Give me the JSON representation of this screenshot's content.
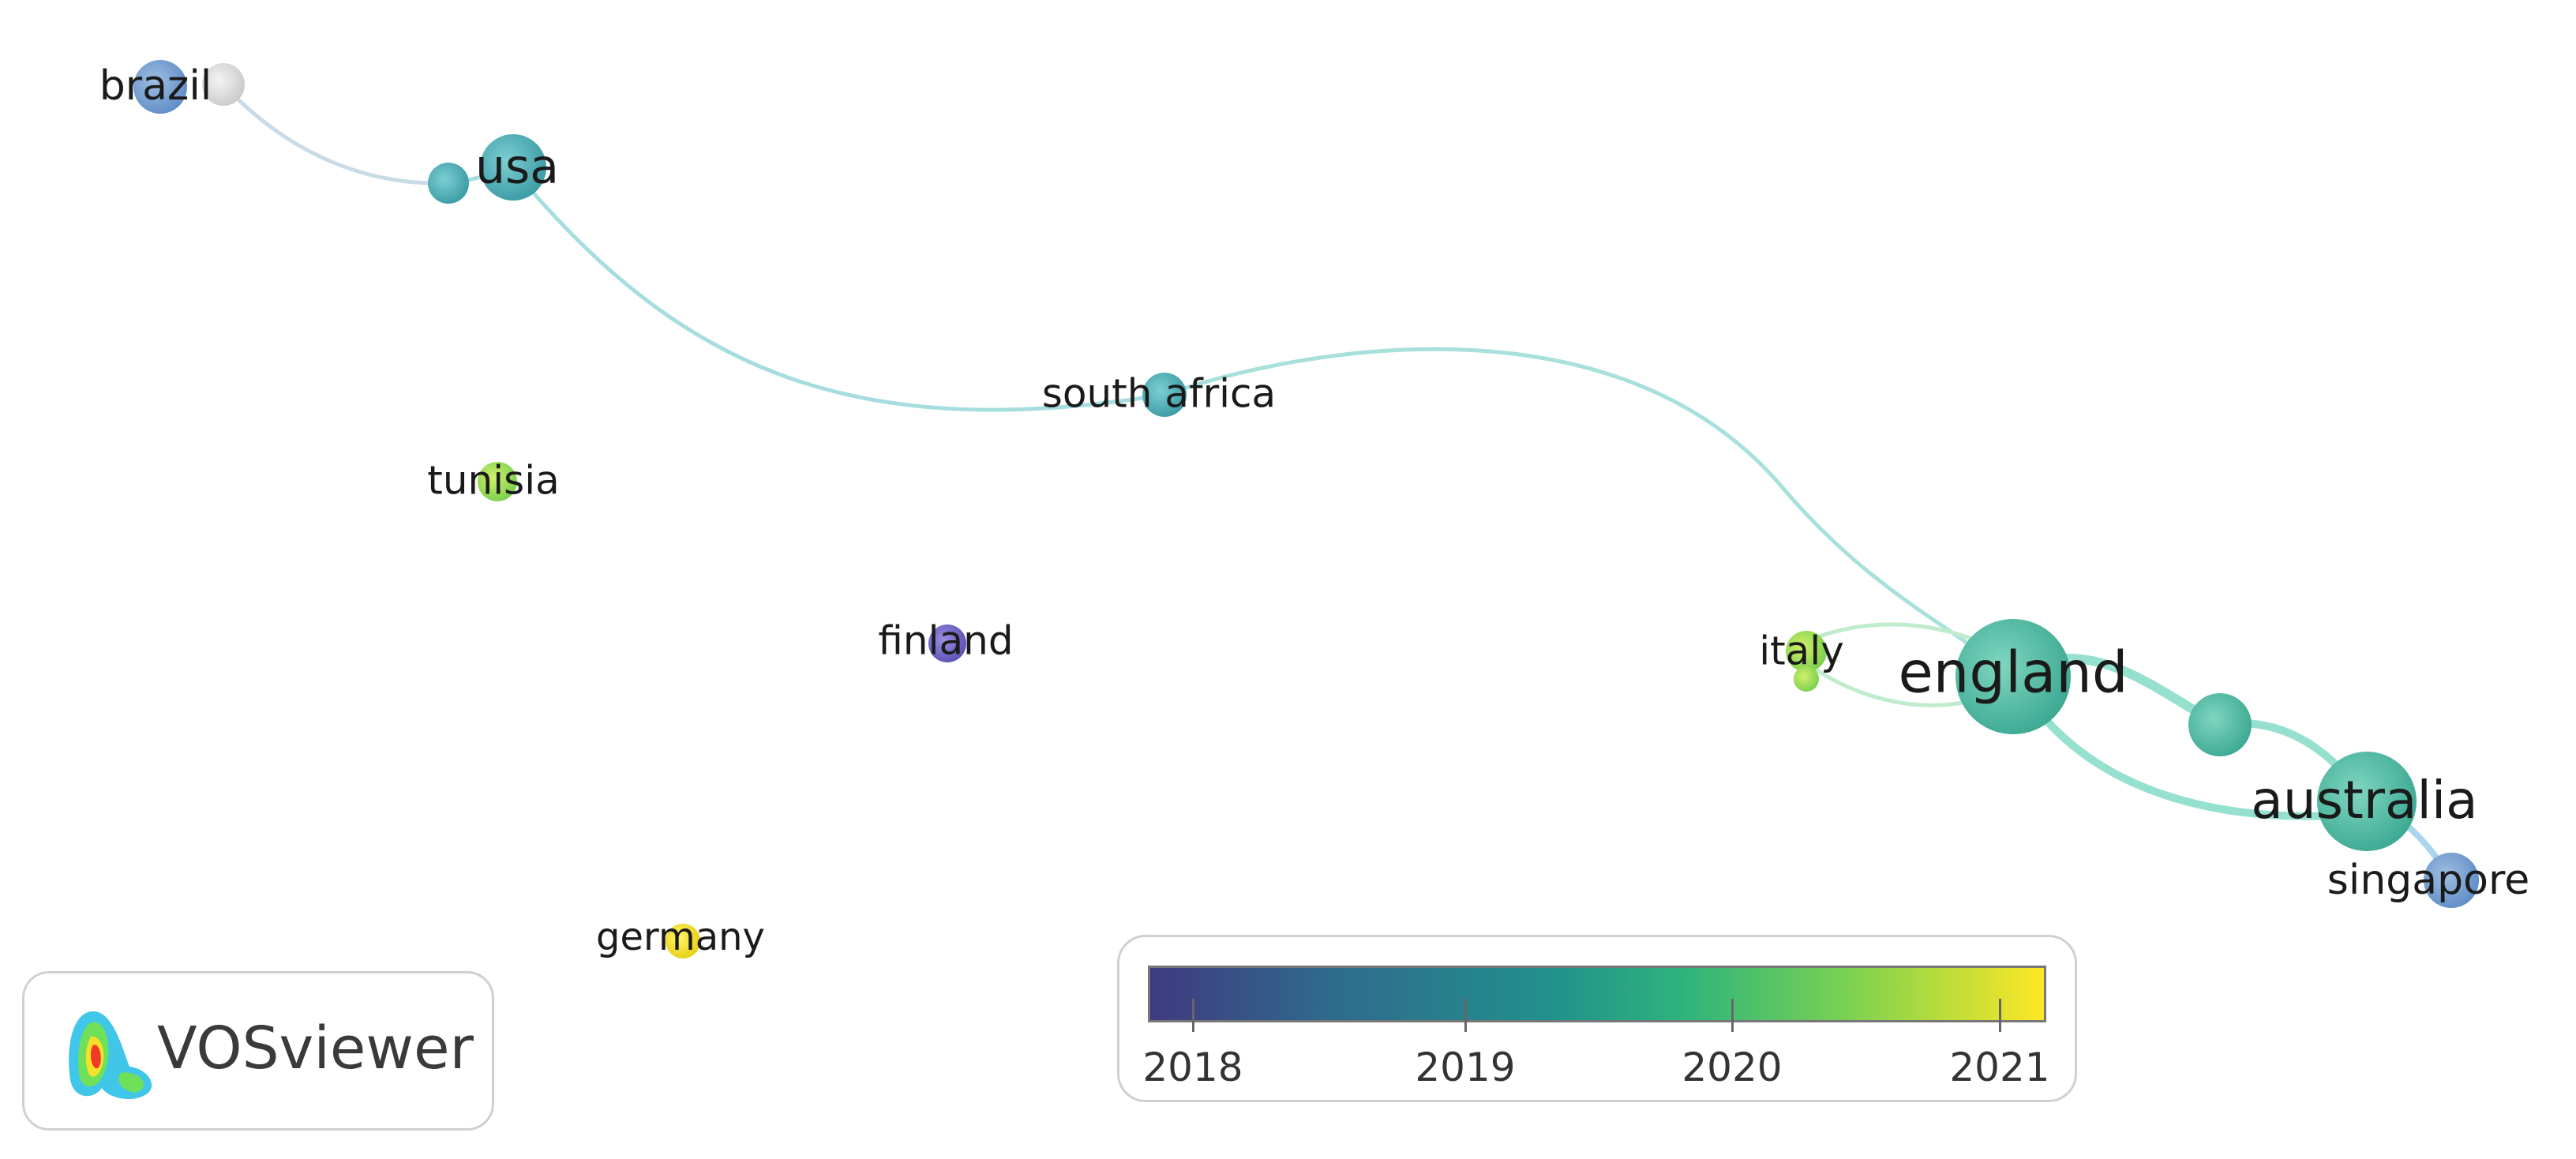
{
  "network": {
    "nodes": [
      {
        "id": "brazil",
        "label": "brazil",
        "year": 2018.6,
        "size": "small"
      },
      {
        "id": "unlabeled-grey",
        "label": "",
        "year": null,
        "size": "small"
      },
      {
        "id": "usa",
        "label": "usa",
        "year": 2019.0,
        "size": "medium"
      },
      {
        "id": "unlabeled-usa-2",
        "label": "",
        "year": 2019.0,
        "size": "small"
      },
      {
        "id": "south-africa",
        "label": "south africa",
        "year": 2019.0,
        "size": "small"
      },
      {
        "id": "tunisia",
        "label": "tunisia",
        "year": 2020.3,
        "size": "small"
      },
      {
        "id": "finland",
        "label": "finland",
        "year": 2018.1,
        "size": "small"
      },
      {
        "id": "italy",
        "label": "italy",
        "year": 2020.5,
        "size": "small"
      },
      {
        "id": "england",
        "label": "england",
        "year": 2019.3,
        "size": "large"
      },
      {
        "id": "unlabeled-mid",
        "label": "",
        "year": 2019.3,
        "size": "medium"
      },
      {
        "id": "australia",
        "label": "australia",
        "year": 2019.3,
        "size": "large"
      },
      {
        "id": "singapore",
        "label": "singapore",
        "year": 2018.6,
        "size": "small"
      },
      {
        "id": "germany",
        "label": "germany",
        "year": 2021.0,
        "size": "small"
      }
    ],
    "links": [
      [
        "unlabeled-grey",
        "unlabeled-usa-2"
      ],
      [
        "unlabeled-usa-2",
        "usa"
      ],
      [
        "usa",
        "south-africa"
      ],
      [
        "south-africa",
        "england"
      ],
      [
        "italy",
        "england"
      ],
      [
        "england",
        "unlabeled-mid"
      ],
      [
        "unlabeled-mid",
        "australia"
      ],
      [
        "england",
        "australia"
      ],
      [
        "australia",
        "singapore"
      ]
    ]
  },
  "legend": {
    "ticks": [
      "2018",
      "2019",
      "2020",
      "2021"
    ],
    "colors": [
      "#3f3a7f",
      "#21918c",
      "#7ad151",
      "#fde725"
    ]
  },
  "logo": {
    "text": "VOSviewer"
  }
}
